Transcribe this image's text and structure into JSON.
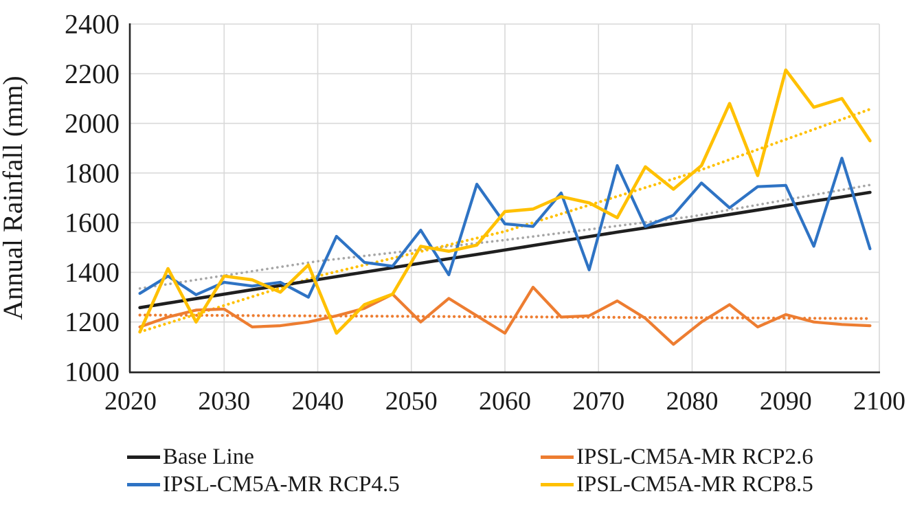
{
  "page": {
    "background": "#ffffff",
    "text_color": "#1a1a1a",
    "gridline_color": "#d9d9d9",
    "axis_line_color": "#262626"
  },
  "chart_data": {
    "type": "line",
    "title": "",
    "xlabel": "",
    "ylabel": "Annual Rainfall (mm)",
    "xlim": [
      2020,
      2100
    ],
    "ylim": [
      1000,
      2400
    ],
    "x_ticks": [
      2020,
      2030,
      2040,
      2050,
      2060,
      2070,
      2080,
      2090,
      2100
    ],
    "y_ticks": [
      1000,
      1200,
      1400,
      1600,
      1800,
      2000,
      2200,
      2400
    ],
    "grid": true,
    "legend_position": "bottom",
    "years": [
      2021,
      2024,
      2027,
      2030,
      2033,
      2036,
      2039,
      2042,
      2045,
      2048,
      2051,
      2054,
      2057,
      2060,
      2063,
      2066,
      2069,
      2072,
      2075,
      2078,
      2081,
      2084,
      2087,
      2090,
      2093,
      2096,
      2099
    ],
    "series": [
      {
        "name": "Base Line",
        "color": "#1f1f1f",
        "style": "solid",
        "width": 4.6,
        "values": [
          1258,
          1276,
          1294,
          1312,
          1330,
          1347,
          1365,
          1383,
          1401,
          1419,
          1437,
          1455,
          1472,
          1490,
          1508,
          1526,
          1544,
          1562,
          1579,
          1597,
          1615,
          1633,
          1651,
          1669,
          1687,
          1704,
          1722
        ]
      },
      {
        "name": "IPSL-CM5A-MR RCP2.6",
        "color": "#ed7d31",
        "style": "solid",
        "width": 4.2,
        "values": [
          1180,
          1220,
          1248,
          1252,
          1180,
          1185,
          1200,
          1225,
          1255,
          1312,
          1200,
          1295,
          1225,
          1155,
          1340,
          1220,
          1225,
          1285,
          1215,
          1110,
          1200,
          1270,
          1180,
          1230,
          1200,
          1190,
          1185
        ]
      },
      {
        "name": "IPSL-CM5A-MR RCP4.5",
        "color": "#2e73c4",
        "style": "solid",
        "width": 4.2,
        "values": [
          1315,
          1385,
          1310,
          1360,
          1345,
          1360,
          1300,
          1545,
          1440,
          1425,
          1570,
          1390,
          1755,
          1595,
          1585,
          1720,
          1410,
          1830,
          1585,
          1630,
          1760,
          1660,
          1745,
          1750,
          1505,
          1860,
          1495
        ]
      },
      {
        "name": "IPSL-CM5A-MR RCP8.5",
        "color": "#ffc000",
        "style": "solid",
        "width": 4.6,
        "values": [
          1160,
          1415,
          1200,
          1385,
          1370,
          1320,
          1430,
          1155,
          1270,
          1312,
          1505,
          1485,
          1510,
          1645,
          1655,
          1705,
          1680,
          1620,
          1825,
          1735,
          1830,
          2080,
          1790,
          2215,
          2065,
          2100,
          1930
        ]
      }
    ],
    "trendlines": [
      {
        "for": "IPSL-CM5A-MR RCP4.5",
        "color": "#a6a6a6",
        "style": "dotted",
        "width": 3.6,
        "points": [
          [
            2021,
            1335
          ],
          [
            2040,
            1445
          ],
          [
            2060,
            1530
          ],
          [
            2080,
            1625
          ],
          [
            2099,
            1752
          ]
        ]
      },
      {
        "for": "IPSL-CM5A-MR RCP2.6",
        "color": "#ed7d31",
        "style": "dotted",
        "width": 4.2,
        "points": [
          [
            2021,
            1228
          ],
          [
            2099,
            1214
          ]
        ]
      },
      {
        "for": "IPSL-CM5A-MR RCP8.5",
        "color": "#ffc000",
        "style": "dotted",
        "width": 4.2,
        "points": [
          [
            2021,
            1160
          ],
          [
            2040,
            1385
          ],
          [
            2060,
            1565
          ],
          [
            2080,
            1800
          ],
          [
            2099,
            2057
          ]
        ]
      }
    ],
    "legend": {
      "entries": [
        {
          "label": "Base Line",
          "color": "#1f1f1f"
        },
        {
          "label": "IPSL-CM5A-MR RCP2.6",
          "color": "#ed7d31"
        },
        {
          "label": "IPSL-CM5A-MR RCP4.5",
          "color": "#2e73c4"
        },
        {
          "label": "IPSL-CM5A-MR RCP8.5",
          "color": "#ffc000"
        }
      ]
    }
  }
}
